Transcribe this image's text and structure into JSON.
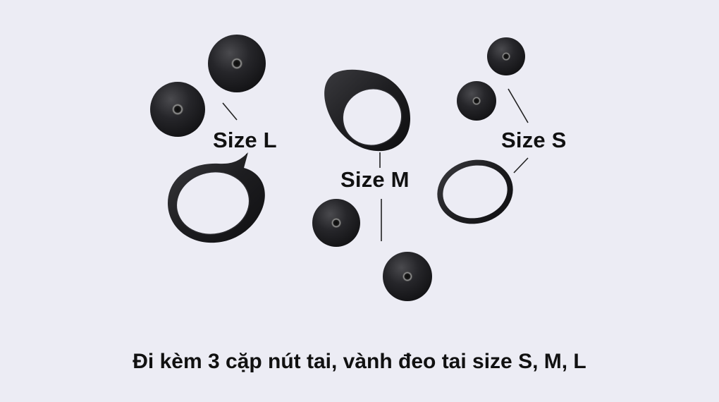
{
  "labels": {
    "size_l": "Size L",
    "size_m": "Size M",
    "size_s": "Size S"
  },
  "caption": "Đi kèm 3 cặp nút tai, vành đeo tai size S, M, L",
  "colors": {
    "background": "#ececf4",
    "accessory": "#1c1c1e",
    "text": "#111111"
  }
}
